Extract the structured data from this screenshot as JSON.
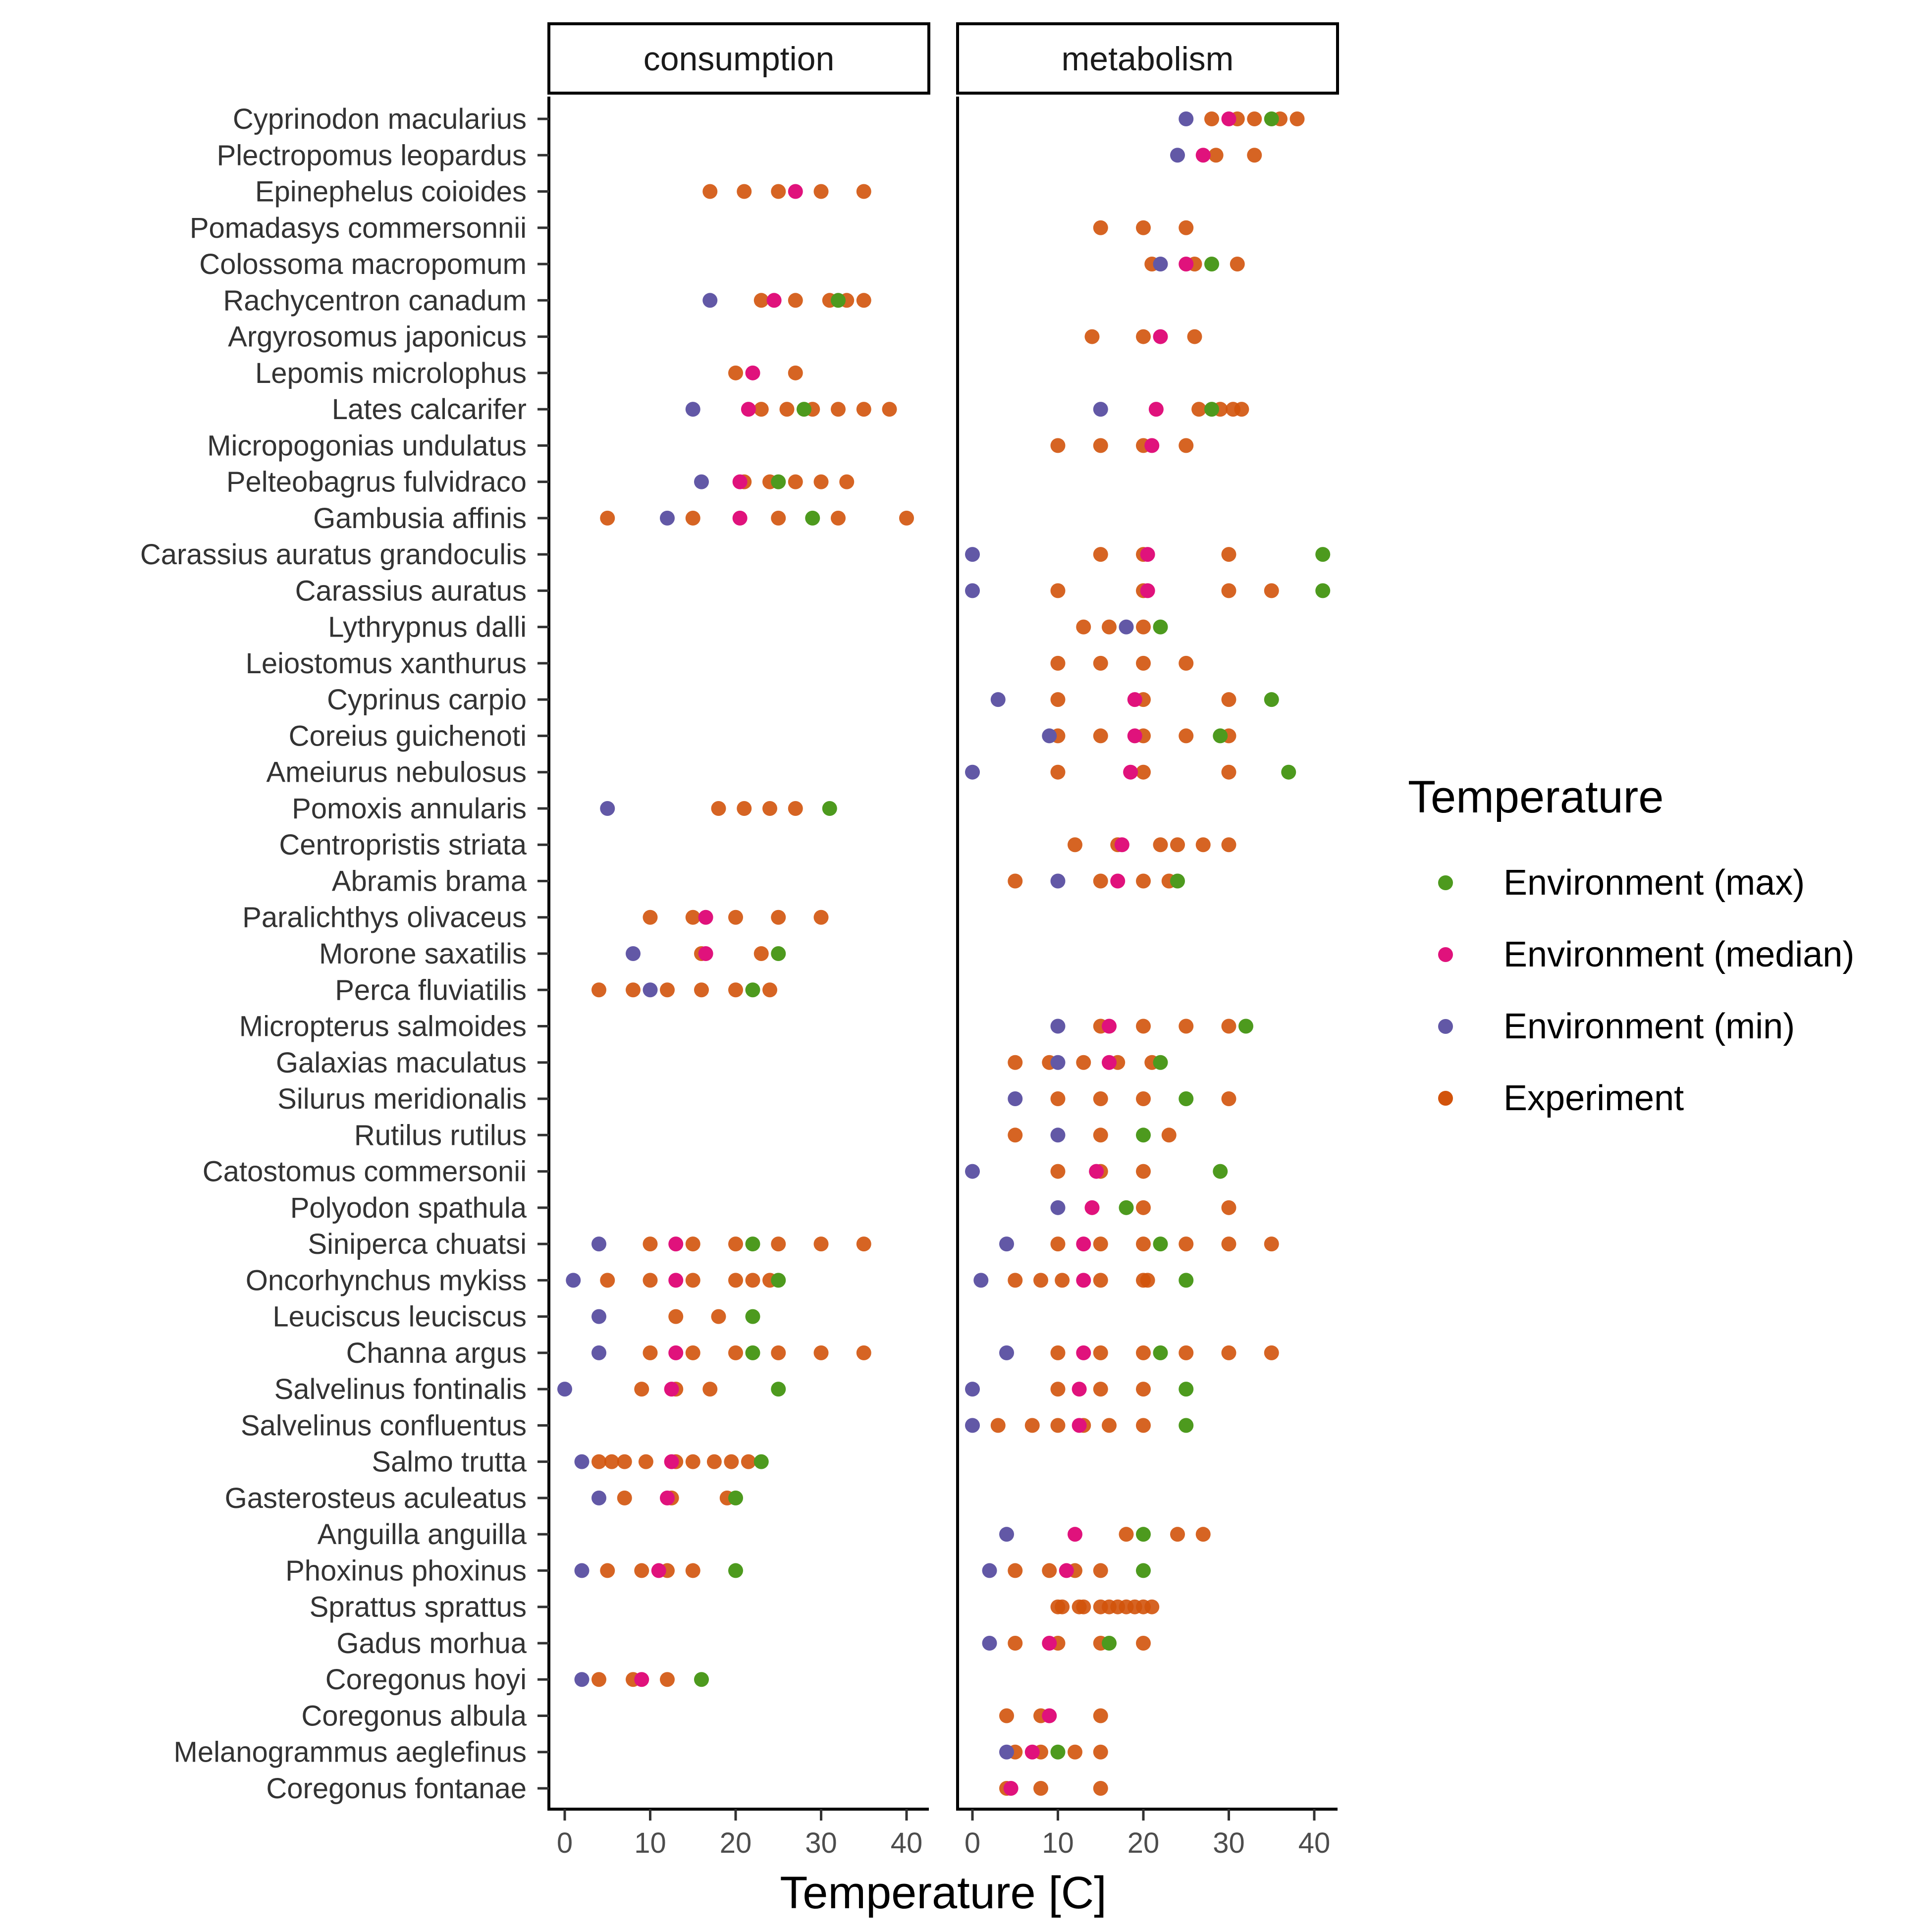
{
  "chart_data": {
    "type": "scatter",
    "xlabel": "Temperature [C]",
    "ylabel": "",
    "xlim": [
      -2,
      43
    ],
    "xticks": [
      0,
      10,
      20,
      30,
      40
    ],
    "x_tick_labels": [
      "0",
      "10",
      "20",
      "30",
      "40"
    ],
    "panels": [
      "consumption",
      "metabolism"
    ],
    "legend_title": "Temperature",
    "legend_position": "right",
    "grid": false,
    "colors": {
      "Environment (max)": "#4d9a1e",
      "Environment (median)": "#e0127c",
      "Environment (min)": "#6258a6",
      "Experiment": "#d2530b"
    },
    "legend_entries": [
      "Environment (max)",
      "Environment (median)",
      "Environment (min)",
      "Experiment"
    ],
    "species": [
      "Cyprinodon macularius",
      "Plectropomus leopardus",
      "Epinephelus coioides",
      "Pomadasys commersonnii",
      "Colossoma macropomum",
      "Rachycentron canadum",
      "Argyrosomus japonicus",
      "Lepomis microlophus",
      "Lates calcarifer",
      "Micropogonias undulatus",
      "Pelteobagrus fulvidraco",
      "Gambusia affinis",
      "Carassius auratus grandoculis",
      "Carassius auratus",
      "Lythrypnus dalli",
      "Leiostomus xanthurus",
      "Cyprinus carpio",
      "Coreius guichenoti",
      "Ameiurus nebulosus",
      "Pomoxis annularis",
      "Centropristis striata",
      "Abramis brama",
      "Paralichthys olivaceus",
      "Morone saxatilis",
      "Perca fluviatilis",
      "Micropterus salmoides",
      "Galaxias maculatus",
      "Silurus meridionalis",
      "Rutilus rutilus",
      "Catostomus commersonii",
      "Polyodon spathula",
      "Siniperca chuatsi",
      "Oncorhynchus mykiss",
      "Leuciscus leuciscus",
      "Channa argus",
      "Salvelinus fontinalis",
      "Salvelinus confluentus",
      "Salmo trutta",
      "Gasterosteus aculeatus",
      "Anguilla anguilla",
      "Phoxinus phoxinus",
      "Sprattus sprattus",
      "Gadus morhua",
      "Coregonus hoyi",
      "Coregonus albula",
      "Melanogrammus aeglefinus",
      "Coregonus fontanae"
    ],
    "series": [
      {
        "name": "Experiment",
        "points": {
          "consumption": {
            "Epinephelus coioides": [
              17,
              21,
              25,
              30,
              35
            ],
            "Rachycentron canadum": [
              23,
              27,
              31,
              33,
              35
            ],
            "Lepomis microlophus": [
              20,
              27
            ],
            "Lates calcarifer": [
              23,
              26,
              29,
              32,
              35,
              38
            ],
            "Pelteobagrus fulvidraco": [
              21,
              24,
              27,
              30,
              33
            ],
            "Gambusia affinis": [
              5,
              15,
              25,
              32,
              40
            ],
            "Pomoxis annularis": [
              18,
              21,
              24,
              27
            ],
            "Paralichthys olivaceus": [
              10,
              15,
              20,
              25,
              30
            ],
            "Morone saxatilis": [
              16,
              23
            ],
            "Perca fluviatilis": [
              4,
              8,
              12,
              16,
              20,
              24
            ],
            "Siniperca chuatsi": [
              10,
              15,
              20,
              25,
              30,
              35
            ],
            "Oncorhynchus mykiss": [
              5,
              10,
              15,
              20,
              22,
              24
            ],
            "Leuciscus leuciscus": [
              13,
              18
            ],
            "Channa argus": [
              10,
              15,
              20,
              25,
              30,
              35
            ],
            "Salvelinus fontinalis": [
              9,
              13,
              17
            ],
            "Salmo trutta": [
              4,
              5.5,
              7,
              9.5,
              13,
              15,
              17.5,
              19.5,
              21.5
            ],
            "Gasterosteus aculeatus": [
              7,
              12.5,
              19
            ],
            "Phoxinus phoxinus": [
              5,
              9,
              12,
              15
            ],
            "Coregonus hoyi": [
              4,
              8,
              12
            ]
          },
          "metabolism": {
            "Cyprinodon macularius": [
              28,
              31,
              33,
              36,
              38
            ],
            "Plectropomus leopardus": [
              28.5,
              33
            ],
            "Pomadasys commersonnii": [
              15,
              20,
              25
            ],
            "Colossoma macropomum": [
              21,
              26,
              31
            ],
            "Argyrosomus japonicus": [
              14,
              20,
              26
            ],
            "Lates calcarifer": [
              26.5,
              29,
              30.5,
              31.5
            ],
            "Micropogonias undulatus": [
              10,
              15,
              20,
              25
            ],
            "Carassius auratus grandoculis": [
              15,
              20,
              30
            ],
            "Carassius auratus": [
              10,
              20,
              30,
              35
            ],
            "Lythrypnus dalli": [
              13,
              16,
              20
            ],
            "Leiostomus xanthurus": [
              10,
              15,
              20,
              25
            ],
            "Cyprinus carpio": [
              10,
              20,
              30
            ],
            "Coreius guichenoti": [
              10,
              15,
              20,
              25,
              30
            ],
            "Ameiurus nebulosus": [
              10,
              20,
              30
            ],
            "Centropristis striata": [
              12,
              17,
              22,
              24,
              27,
              30
            ],
            "Abramis brama": [
              5,
              15,
              20,
              23
            ],
            "Micropterus salmoides": [
              15,
              20,
              25,
              30
            ],
            "Galaxias maculatus": [
              5,
              9,
              13,
              17,
              21
            ],
            "Silurus meridionalis": [
              10,
              15,
              20,
              30
            ],
            "Rutilus rutilus": [
              5,
              15,
              23
            ],
            "Catostomus commersonii": [
              10,
              15,
              20
            ],
            "Polyodon spathula": [
              20,
              30
            ],
            "Siniperca chuatsi": [
              10,
              15,
              20,
              25,
              30,
              35
            ],
            "Oncorhynchus mykiss": [
              5,
              8,
              10.5,
              15,
              20,
              20.5
            ],
            "Channa argus": [
              10,
              15,
              20,
              25,
              30,
              35
            ],
            "Salvelinus fontinalis": [
              10,
              15,
              20
            ],
            "Salvelinus confluentus": [
              3,
              7,
              10,
              13,
              16,
              20
            ],
            "Anguilla anguilla": [
              18,
              24,
              27
            ],
            "Phoxinus phoxinus": [
              5,
              9,
              12,
              15
            ],
            "Sprattus sprattus": [
              10,
              10.5,
              12.5,
              13,
              15,
              16,
              17,
              18,
              19,
              20,
              21
            ],
            "Gadus morhua": [
              5,
              10,
              15,
              20
            ],
            "Coregonus albula": [
              4,
              8,
              15
            ],
            "Melanogrammus aeglefinus": [
              5,
              8,
              12,
              15
            ],
            "Coregonus fontanae": [
              4,
              8,
              15
            ]
          }
        }
      },
      {
        "name": "Environment (min)",
        "points": {
          "consumption": {
            "Rachycentron canadum": [
              17
            ],
            "Lates calcarifer": [
              15
            ],
            "Pelteobagrus fulvidraco": [
              16
            ],
            "Gambusia affinis": [
              12
            ],
            "Pomoxis annularis": [
              5
            ],
            "Morone saxatilis": [
              8
            ],
            "Perca fluviatilis": [
              10
            ],
            "Siniperca chuatsi": [
              4
            ],
            "Oncorhynchus mykiss": [
              1
            ],
            "Leuciscus leuciscus": [
              4
            ],
            "Channa argus": [
              4
            ],
            "Salvelinus fontinalis": [
              0
            ],
            "Salmo trutta": [
              2
            ],
            "Gasterosteus aculeatus": [
              4
            ],
            "Phoxinus phoxinus": [
              2
            ],
            "Coregonus hoyi": [
              2
            ]
          },
          "metabolism": {
            "Cyprinodon macularius": [
              25
            ],
            "Plectropomus leopardus": [
              24
            ],
            "Colossoma macropomum": [
              22
            ],
            "Lates calcarifer": [
              15
            ],
            "Carassius auratus grandoculis": [
              0
            ],
            "Carassius auratus": [
              0
            ],
            "Lythrypnus dalli": [
              18
            ],
            "Cyprinus carpio": [
              3
            ],
            "Coreius guichenoti": [
              9
            ],
            "Ameiurus nebulosus": [
              0
            ],
            "Abramis brama": [
              10
            ],
            "Micropterus salmoides": [
              10
            ],
            "Galaxias maculatus": [
              10
            ],
            "Silurus meridionalis": [
              5
            ],
            "Rutilus rutilus": [
              10
            ],
            "Catostomus commersonii": [
              0
            ],
            "Polyodon spathula": [
              10
            ],
            "Siniperca chuatsi": [
              4
            ],
            "Oncorhynchus mykiss": [
              1
            ],
            "Channa argus": [
              4
            ],
            "Salvelinus fontinalis": [
              0
            ],
            "Salvelinus confluentus": [
              0
            ],
            "Anguilla anguilla": [
              4
            ],
            "Phoxinus phoxinus": [
              2
            ],
            "Gadus morhua": [
              2
            ],
            "Melanogrammus aeglefinus": [
              4
            ]
          }
        }
      },
      {
        "name": "Environment (median)",
        "points": {
          "consumption": {
            "Epinephelus coioides": [
              27
            ],
            "Rachycentron canadum": [
              24.5
            ],
            "Lepomis microlophus": [
              22
            ],
            "Lates calcarifer": [
              21.5
            ],
            "Pelteobagrus fulvidraco": [
              20.5
            ],
            "Gambusia affinis": [
              20.5
            ],
            "Paralichthys olivaceus": [
              16.5
            ],
            "Morone saxatilis": [
              16.5
            ],
            "Siniperca chuatsi": [
              13
            ],
            "Oncorhynchus mykiss": [
              13
            ],
            "Channa argus": [
              13
            ],
            "Salvelinus fontinalis": [
              12.5
            ],
            "Salmo trutta": [
              12.5
            ],
            "Gasterosteus aculeatus": [
              12
            ],
            "Phoxinus phoxinus": [
              11
            ],
            "Coregonus hoyi": [
              9
            ]
          },
          "metabolism": {
            "Cyprinodon macularius": [
              30
            ],
            "Plectropomus leopardus": [
              27
            ],
            "Colossoma macropomum": [
              25
            ],
            "Argyrosomus japonicus": [
              22
            ],
            "Lates calcarifer": [
              21.5
            ],
            "Micropogonias undulatus": [
              21
            ],
            "Carassius auratus grandoculis": [
              20.5
            ],
            "Carassius auratus": [
              20.5
            ],
            "Cyprinus carpio": [
              19
            ],
            "Coreius guichenoti": [
              19
            ],
            "Ameiurus nebulosus": [
              18.5
            ],
            "Centropristis striata": [
              17.5
            ],
            "Abramis brama": [
              17
            ],
            "Micropterus salmoides": [
              16
            ],
            "Galaxias maculatus": [
              16
            ],
            "Catostomus commersonii": [
              14.5
            ],
            "Polyodon spathula": [
              14
            ],
            "Siniperca chuatsi": [
              13
            ],
            "Oncorhynchus mykiss": [
              13
            ],
            "Channa argus": [
              13
            ],
            "Salvelinus fontinalis": [
              12.5
            ],
            "Salvelinus confluentus": [
              12.5
            ],
            "Anguilla anguilla": [
              12
            ],
            "Phoxinus phoxinus": [
              11
            ],
            "Gadus morhua": [
              9
            ],
            "Coregonus albula": [
              9
            ],
            "Melanogrammus aeglefinus": [
              7
            ],
            "Coregonus fontanae": [
              4.5
            ]
          }
        }
      },
      {
        "name": "Environment (max)",
        "points": {
          "consumption": {
            "Rachycentron canadum": [
              32
            ],
            "Lates calcarifer": [
              28
            ],
            "Pelteobagrus fulvidraco": [
              25
            ],
            "Gambusia affinis": [
              29
            ],
            "Pomoxis annularis": [
              31
            ],
            "Morone saxatilis": [
              25
            ],
            "Perca fluviatilis": [
              22
            ],
            "Siniperca chuatsi": [
              22
            ],
            "Oncorhynchus mykiss": [
              25
            ],
            "Leuciscus leuciscus": [
              22
            ],
            "Channa argus": [
              22
            ],
            "Salvelinus fontinalis": [
              25
            ],
            "Salmo trutta": [
              23
            ],
            "Gasterosteus aculeatus": [
              20
            ],
            "Phoxinus phoxinus": [
              20
            ],
            "Coregonus hoyi": [
              16
            ]
          },
          "metabolism": {
            "Cyprinodon macularius": [
              35
            ],
            "Colossoma macropomum": [
              28
            ],
            "Lates calcarifer": [
              28
            ],
            "Carassius auratus grandoculis": [
              41
            ],
            "Carassius auratus": [
              41
            ],
            "Lythrypnus dalli": [
              22
            ],
            "Cyprinus carpio": [
              35
            ],
            "Coreius guichenoti": [
              29
            ],
            "Ameiurus nebulosus": [
              37
            ],
            "Abramis brama": [
              24
            ],
            "Micropterus salmoides": [
              32
            ],
            "Galaxias maculatus": [
              22
            ],
            "Silurus meridionalis": [
              25
            ],
            "Rutilus rutilus": [
              20
            ],
            "Catostomus commersonii": [
              29
            ],
            "Polyodon spathula": [
              18
            ],
            "Siniperca chuatsi": [
              22
            ],
            "Oncorhynchus mykiss": [
              25
            ],
            "Channa argus": [
              22
            ],
            "Salvelinus fontinalis": [
              25
            ],
            "Salvelinus confluentus": [
              25
            ],
            "Anguilla anguilla": [
              20
            ],
            "Phoxinus phoxinus": [
              20
            ],
            "Gadus morhua": [
              16
            ],
            "Melanogrammus aeglefinus": [
              10
            ]
          }
        }
      }
    ]
  }
}
